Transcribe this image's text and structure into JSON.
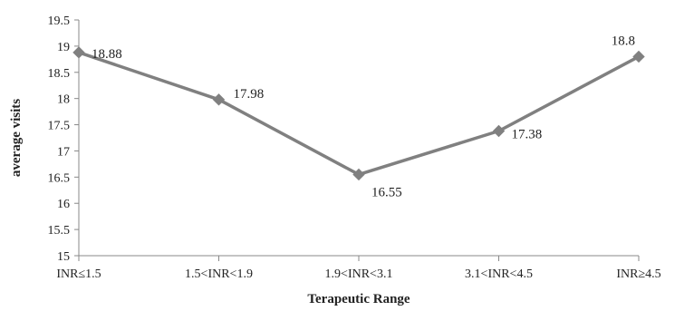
{
  "chart_data": {
    "type": "line",
    "title": "",
    "xlabel": "Terapeutic Range",
    "ylabel": "average visits",
    "categories": [
      "INR≤1.5",
      "1.5<INR<1.9",
      "1.9<INR<3.1",
      "3.1<INR<4.5",
      "INR≥4.5"
    ],
    "series": [
      {
        "values": [
          18.88,
          17.98,
          16.55,
          17.38,
          18.8
        ],
        "labels": [
          "18.88",
          "17.98",
          "16.55",
          "17.38",
          "18.8"
        ],
        "color": "#808080",
        "marker": "diamond"
      }
    ],
    "ylim": [
      15,
      19.5
    ],
    "yticks": [
      15,
      15.5,
      16,
      16.5,
      17,
      17.5,
      18,
      18.5,
      19,
      19.5
    ],
    "ytick_labels": [
      "15",
      "15.5",
      "16",
      "16.5",
      "17",
      "17.5",
      "18",
      "18.5",
      "19",
      "19.5"
    ],
    "grid": false,
    "legend": "none"
  }
}
